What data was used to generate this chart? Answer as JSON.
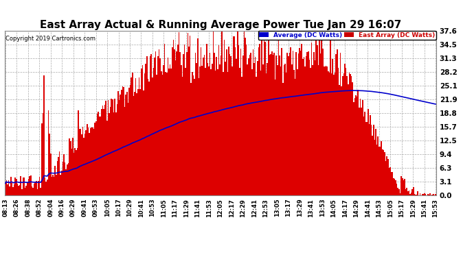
{
  "title": "East Array Actual & Running Average Power Tue Jan 29 16:07",
  "copyright": "Copyright 2019 Cartronics.com",
  "ylabel_right_values": [
    37.6,
    34.5,
    31.3,
    28.2,
    25.1,
    21.9,
    18.8,
    15.7,
    12.5,
    9.4,
    6.3,
    3.1,
    0.0
  ],
  "ymax": 37.6,
  "ymin": 0.0,
  "legend_avg_label": "Average (DC Watts)",
  "legend_east_label": "East Array (DC Watts)",
  "legend_avg_color": "#0000cc",
  "legend_east_color": "#cc0000",
  "bar_color": "#dd0000",
  "avg_line_color": "#0000cc",
  "background_color": "#ffffff",
  "grid_color": "#aaaaaa",
  "title_fontsize": 11,
  "tick_labels": [
    "08:13",
    "08:26",
    "08:38",
    "08:52",
    "09:04",
    "09:16",
    "09:29",
    "09:41",
    "09:53",
    "10:05",
    "10:17",
    "10:29",
    "10:41",
    "10:53",
    "11:05",
    "11:17",
    "11:29",
    "11:41",
    "11:53",
    "12:05",
    "12:17",
    "12:29",
    "12:41",
    "12:53",
    "13:05",
    "13:17",
    "13:29",
    "13:41",
    "13:53",
    "14:05",
    "14:17",
    "14:29",
    "14:41",
    "14:53",
    "15:05",
    "15:17",
    "15:29",
    "15:41",
    "15:53"
  ]
}
